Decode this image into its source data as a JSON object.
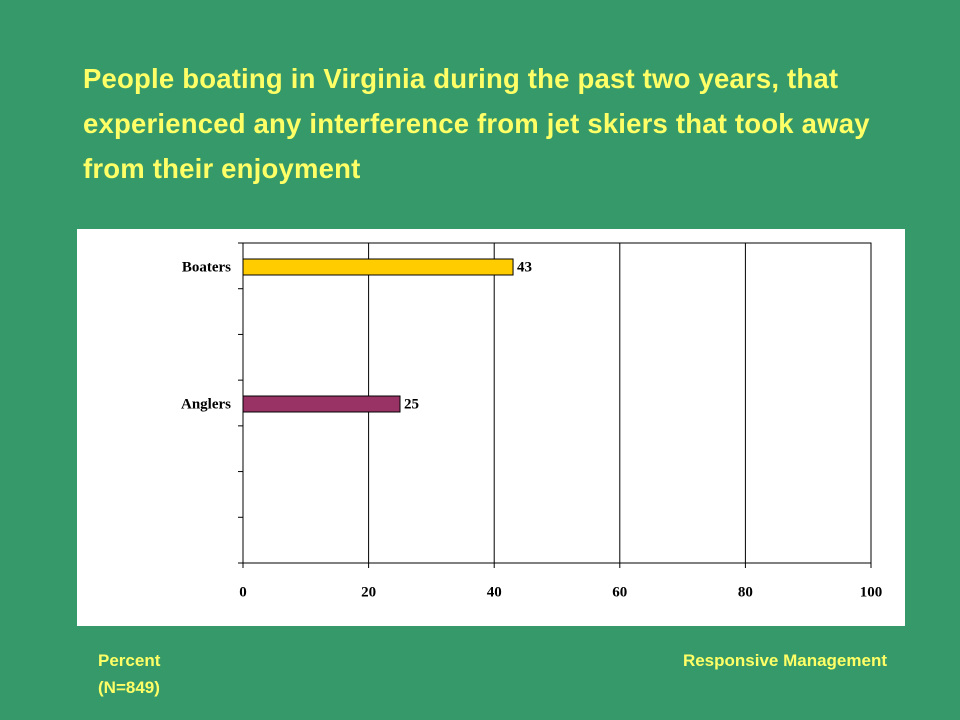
{
  "chart_data": {
    "type": "bar",
    "orientation": "horizontal",
    "title": "People boating in Virginia during the past two years, that experienced any interference from jet skiers that took away from their enjoyment",
    "categories": [
      "Boaters",
      "Anglers"
    ],
    "values": [
      43,
      25
    ],
    "colors": [
      "#ffcc00",
      "#993366"
    ],
    "xlim": [
      0,
      100
    ],
    "xticks": [
      0,
      20,
      40,
      60,
      80,
      100
    ],
    "grid": true
  },
  "footer": {
    "left": [
      "Percent",
      "(N=849)"
    ],
    "right": "Responsive Management"
  }
}
